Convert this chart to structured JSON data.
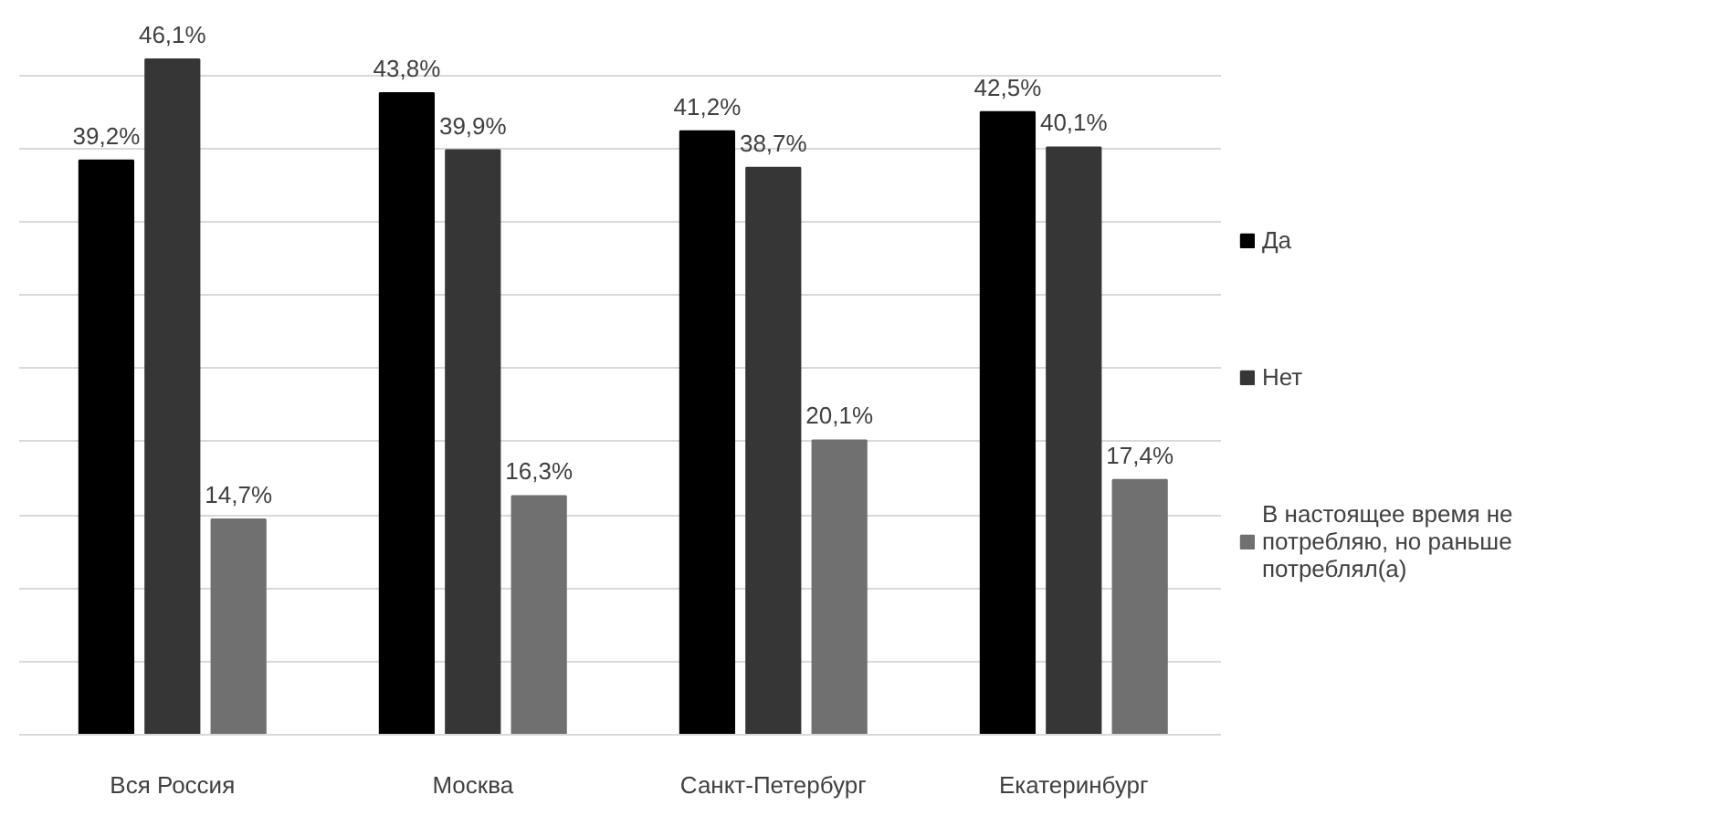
{
  "chart_data": {
    "type": "bar",
    "categories": [
      "Вся Россия",
      "Москва",
      "Санкт-Петербург",
      "Екатеринбург"
    ],
    "series": [
      {
        "name": "Да",
        "color": "#000000",
        "values": [
          39.2,
          43.8,
          41.2,
          42.5
        ],
        "value_labels": [
          "39,2%",
          "43,8%",
          "41,2%",
          "42,5%"
        ]
      },
      {
        "name": "Нет",
        "color": "#363636",
        "values": [
          46.1,
          39.9,
          38.7,
          40.1
        ],
        "value_labels": [
          "46,1%",
          "39,9%",
          "38,7%",
          "40,1%"
        ]
      },
      {
        "name": "В настоящее время не потребляю, но раньше потреблял(а)",
        "color": "#707070",
        "values": [
          14.7,
          16.3,
          20.1,
          17.4
        ],
        "value_labels": [
          "14,7%",
          "16,3%",
          "20,1%",
          "17,4%"
        ]
      }
    ],
    "grid": "y",
    "legend": "right",
    "tick_labels": "x"
  }
}
